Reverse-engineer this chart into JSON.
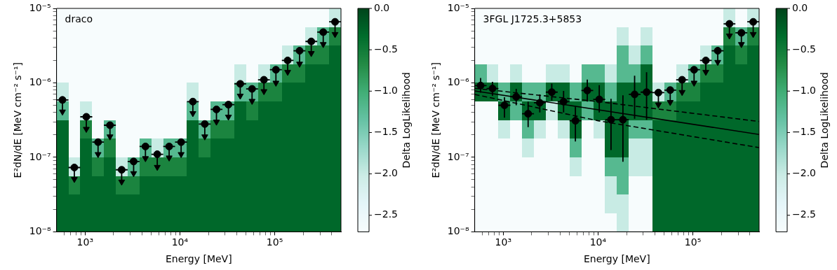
{
  "chart_data": [
    {
      "type": "heatmap",
      "xlabel": "Energy [MeV]",
      "ylabel": "E²dN/dE [MeV cm⁻² s⁻¹]",
      "clabel": "Delta LogLikelihood",
      "annotations": [
        "draco"
      ],
      "log": "xy",
      "xlim": [
        500,
        500000
      ],
      "ylim": [
        1e-08,
        1e-05
      ],
      "xticks": [
        {
          "value": 600,
          "label": null
        },
        {
          "value": 700,
          "label": null
        },
        {
          "value": 800,
          "label": null
        },
        {
          "value": 900,
          "label": null
        },
        {
          "value": 1000,
          "label": "10³"
        },
        {
          "value": 2000,
          "label": null
        },
        {
          "value": 3000,
          "label": null
        },
        {
          "value": 4000,
          "label": null
        },
        {
          "value": 5000,
          "label": null
        },
        {
          "value": 6000,
          "label": null
        },
        {
          "value": 7000,
          "label": null
        },
        {
          "value": 8000,
          "label": null
        },
        {
          "value": 9000,
          "label": null
        },
        {
          "value": 10000,
          "label": "10⁴"
        },
        {
          "value": 20000,
          "label": null
        },
        {
          "value": 30000,
          "label": null
        },
        {
          "value": 40000,
          "label": null
        },
        {
          "value": 50000,
          "label": null
        },
        {
          "value": 60000,
          "label": null
        },
        {
          "value": 70000,
          "label": null
        },
        {
          "value": 80000,
          "label": null
        },
        {
          "value": 90000,
          "label": null
        },
        {
          "value": 100000,
          "label": "10⁵"
        },
        {
          "value": 200000,
          "label": null
        },
        {
          "value": 300000,
          "label": null
        },
        {
          "value": 400000,
          "label": null
        }
      ],
      "yticks": [
        {
          "value": 1e-08,
          "label": "10⁻⁸"
        },
        {
          "value": 2e-08,
          "label": null
        },
        {
          "value": 3e-08,
          "label": null
        },
        {
          "value": 4e-08,
          "label": null
        },
        {
          "value": 5e-08,
          "label": null
        },
        {
          "value": 6e-08,
          "label": null
        },
        {
          "value": 7e-08,
          "label": null
        },
        {
          "value": 8e-08,
          "label": null
        },
        {
          "value": 9e-08,
          "label": null
        },
        {
          "value": 1e-07,
          "label": "10⁻⁷"
        },
        {
          "value": 2e-07,
          "label": null
        },
        {
          "value": 3e-07,
          "label": null
        },
        {
          "value": 4e-07,
          "label": null
        },
        {
          "value": 5e-07,
          "label": null
        },
        {
          "value": 6e-07,
          "label": null
        },
        {
          "value": 7e-07,
          "label": null
        },
        {
          "value": 8e-07,
          "label": null
        },
        {
          "value": 9e-07,
          "label": null
        },
        {
          "value": 1e-06,
          "label": "10⁻⁶"
        },
        {
          "value": 2e-06,
          "label": null
        },
        {
          "value": 3e-06,
          "label": null
        },
        {
          "value": 4e-06,
          "label": null
        },
        {
          "value": 5e-06,
          "label": null
        },
        {
          "value": 6e-06,
          "label": null
        },
        {
          "value": 7e-06,
          "label": null
        },
        {
          "value": 8e-06,
          "label": null
        },
        {
          "value": 9e-06,
          "label": null
        },
        {
          "value": 1e-05,
          "label": "10⁻⁵"
        }
      ],
      "clim": [
        -2.7,
        0
      ],
      "cticks": [
        {
          "value": 0,
          "label": "0.0"
        },
        {
          "value": -0.5,
          "label": "−0.5"
        },
        {
          "value": -1,
          "label": "−1.0"
        },
        {
          "value": -1.5,
          "label": "−1.5"
        },
        {
          "value": -2,
          "label": "−2.0"
        },
        {
          "value": -2.5,
          "label": "−2.5"
        }
      ],
      "cells": [
        [
          -2.7,
          -2.7,
          -2.7,
          -2.7,
          -2.7,
          -2.7,
          -2.7,
          -2.7,
          -2.7,
          -2.7,
          -2.7,
          -2.7,
          -2.7,
          -2.7,
          -2.7,
          -2.7,
          -2.7,
          -2.7,
          -2.7,
          -2.7,
          -2.7,
          -2.7,
          -2.7,
          -2
        ],
        [
          -2.7,
          -2.7,
          -2.7,
          -2.7,
          -2.7,
          -2.7,
          -2.7,
          -2.7,
          -2.7,
          -2.7,
          -2.7,
          -2.7,
          -2.7,
          -2.7,
          -2.7,
          -2.7,
          -2.7,
          -2.7,
          -2.7,
          -2.7,
          -2.7,
          -2,
          -1.2,
          -0.6
        ],
        [
          -2.7,
          -2.7,
          -2.7,
          -2.7,
          -2.7,
          -2.7,
          -2.7,
          -2.7,
          -2.7,
          -2.7,
          -2.7,
          -2.7,
          -2.7,
          -2.7,
          -2.7,
          -2.7,
          -2.7,
          -2.7,
          -2.7,
          -2,
          -1.2,
          -0.6,
          -0.6,
          -0.3
        ],
        [
          -2.7,
          -2.7,
          -2.7,
          -2.7,
          -2.7,
          -2.7,
          -2.7,
          -2.7,
          -2.7,
          -2.7,
          -2.7,
          -2.7,
          -2.7,
          -2.7,
          -2.7,
          -2,
          -2.7,
          -2,
          -1.2,
          -0.6,
          -0.6,
          -0.3,
          -0.3,
          -0.3
        ],
        [
          -2,
          -2.7,
          -2.7,
          -2.7,
          -2.7,
          -2.7,
          -2.7,
          -2.7,
          -2.7,
          -2.7,
          -2.7,
          -2,
          -2.7,
          -2.7,
          -2.7,
          -1.2,
          -1.2,
          -0.6,
          -0.6,
          -0.3,
          -0.3,
          -0.3,
          -0.3,
          -0.3
        ],
        [
          -1.2,
          -2.7,
          -2,
          -2.7,
          -2.7,
          -2.7,
          -2.7,
          -2.7,
          -2.7,
          -2.7,
          -2.7,
          -1.2,
          -2.7,
          -1.2,
          -1.2,
          -0.3,
          -0.6,
          -0.3,
          -0.3,
          -0.3,
          -0.3,
          -0.3,
          -0.3,
          -0.3
        ],
        [
          -0.3,
          -2.7,
          -0.6,
          -2.7,
          -1.2,
          -2.7,
          -2.7,
          -2.7,
          -2.7,
          -2.7,
          -2.7,
          -0.3,
          -1.2,
          -0.6,
          -0.6,
          -0.3,
          -0.3,
          -0.3,
          -0.3,
          -0.3,
          -0.3,
          -0.3,
          -0.3,
          -0.3
        ],
        [
          -0.3,
          -2.7,
          -0.3,
          -1.2,
          -0.6,
          -2.7,
          -2.7,
          -1.2,
          -2,
          -1.2,
          -1.2,
          -0.3,
          -0.6,
          -0.3,
          -0.3,
          -0.3,
          -0.3,
          -0.3,
          -0.3,
          -0.3,
          -0.3,
          -0.3,
          -0.3,
          -0.3
        ],
        [
          -0.3,
          -2,
          -0.3,
          -0.6,
          -0.3,
          -2,
          -1.2,
          -0.6,
          -0.6,
          -0.6,
          -0.6,
          -0.3,
          -0.3,
          -0.3,
          -0.3,
          -0.3,
          -0.3,
          -0.3,
          -0.3,
          -0.3,
          -0.3,
          -0.3,
          -0.3,
          -0.3
        ],
        [
          -0.3,
          -0.6,
          -0.3,
          -0.3,
          -0.3,
          -0.6,
          -0.6,
          -0.3,
          -0.3,
          -0.3,
          -0.3,
          -0.3,
          -0.3,
          -0.3,
          -0.3,
          -0.3,
          -0.3,
          -0.3,
          -0.3,
          -0.3,
          -0.3,
          -0.3,
          -0.3,
          -0.3
        ],
        [
          -0.3,
          -0.3,
          -0.3,
          -0.3,
          -0.3,
          -0.3,
          -0.3,
          -0.3,
          -0.3,
          -0.3,
          -0.3,
          -0.3,
          -0.3,
          -0.3,
          -0.3,
          -0.3,
          -0.3,
          -0.3,
          -0.3,
          -0.3,
          -0.3,
          -0.3,
          -0.3,
          -0.3
        ],
        [
          -0.3,
          -0.3,
          -0.3,
          -0.3,
          -0.3,
          -0.3,
          -0.3,
          -0.3,
          -0.3,
          -0.3,
          -0.3,
          -0.3,
          -0.3,
          -0.3,
          -0.3,
          -0.3,
          -0.3,
          -0.3,
          -0.3,
          -0.3,
          -0.3,
          -0.3,
          -0.3,
          -0.3
        ]
      ],
      "series": [
        {
          "type": "scatter",
          "color": "#000000",
          "marker": "circle",
          "x": [
            577,
            770,
            1030,
            1370,
            1830,
            2430,
            3250,
            4330,
            5770,
            7700,
            10300,
            13700,
            18300,
            24300,
            32500,
            43300,
            57700,
            77000,
            103000,
            137000,
            183000,
            243000,
            325000,
            433000
          ],
          "values": [
            5.9e-07,
            7.3e-08,
            3.5e-07,
            1.6e-07,
            2.7e-07,
            6.8e-08,
            8.8e-08,
            1.4e-07,
            1.1e-07,
            1.4e-07,
            1.6e-07,
            5.6e-07,
            2.8e-07,
            4.4e-07,
            5.1e-07,
            9.7e-07,
            8.3e-07,
            1.1e-06,
            1.5e-06,
            2e-06,
            2.7e-06,
            3.6e-06,
            4.8e-06,
            6.6e-06
          ],
          "errors": [
            [
              4.1e-07,
              5.9e-07
            ],
            [
              5.1e-08,
              7.3e-08
            ],
            [
              2.4e-07,
              3.5e-07
            ],
            [
              1.1e-07,
              1.6e-07
            ],
            [
              1.9e-07,
              2.7e-07
            ],
            [
              4.7e-08,
              6.8e-08
            ],
            [
              6.1e-08,
              8.8e-08
            ],
            [
              9.7e-08,
              1.4e-07
            ],
            [
              7.4e-08,
              1.1e-07
            ],
            [
              9.9e-08,
              1.4e-07
            ],
            [
              1.1e-07,
              1.6e-07
            ],
            [
              3.9e-07,
              5.6e-07
            ],
            [
              1.9e-07,
              2.8e-07
            ],
            [
              3e-07,
              4.4e-07
            ],
            [
              3.5e-07,
              5.1e-07
            ],
            [
              6.7e-07,
              9.7e-07
            ],
            [
              5.7e-07,
              8.3e-07
            ],
            [
              7.7e-07,
              1.1e-06
            ],
            [
              1e-06,
              1.5e-06
            ],
            [
              1.4e-06,
              2e-06
            ],
            [
              1.8e-06,
              2.7e-06
            ],
            [
              2.5e-06,
              3.6e-06
            ],
            [
              3.3e-06,
              4.8e-06
            ],
            [
              4.5e-06,
              6.6e-06
            ]
          ],
          "xerrors": [
            [
              500,
              667
            ],
            [
              667,
              889
            ],
            [
              889,
              1190
            ],
            [
              1190,
              1580
            ],
            [
              1580,
              2110
            ],
            [
              2110,
              2810
            ],
            [
              2810,
              3750
            ],
            [
              3750,
              5000
            ],
            [
              5000,
              6670
            ],
            [
              6670,
              8890
            ],
            [
              8890,
              11900
            ],
            [
              11900,
              15800
            ],
            [
              15800,
              21100
            ],
            [
              21100,
              28100
            ],
            [
              28100,
              37500
            ],
            [
              37500,
              50000
            ],
            [
              50000,
              66700
            ],
            [
              66700,
              88900
            ],
            [
              88900,
              119000
            ],
            [
              119000,
              158000
            ],
            [
              158000,
              211000
            ],
            [
              211000,
              281000
            ],
            [
              281000,
              375000
            ],
            [
              375000,
              500000
            ]
          ]
        },
        {
          "type": "scatter",
          "color": "#000000",
          "marker": "triangle",
          "x": [
            577,
            770,
            1030,
            1370,
            1830,
            2430,
            3250,
            4330,
            5770,
            7700,
            10300,
            13700,
            18300,
            24300,
            32500,
            43300,
            57700,
            77000,
            103000,
            137000,
            183000,
            243000,
            325000,
            433000
          ],
          "values": [
            4.1e-07,
            5.1e-08,
            2.4e-07,
            1.1e-07,
            1.9e-07,
            4.7e-08,
            6.1e-08,
            9.7e-08,
            7.4e-08,
            9.9e-08,
            1.1e-07,
            3.9e-07,
            1.9e-07,
            3e-07,
            3.5e-07,
            6.7e-07,
            5.7e-07,
            7.7e-07,
            1e-06,
            1.4e-06,
            1.8e-06,
            2.5e-06,
            3.3e-06,
            4.5e-06
          ]
        }
      ]
    },
    {
      "type": "heatmap",
      "xlabel": "Energy [MeV]",
      "ylabel": "E²dN/dE [MeV cm⁻² s⁻¹]",
      "clabel": "Delta LogLikelihood",
      "annotations": [
        "3FGL J1725.3+5853"
      ],
      "log": "xy",
      "xlim": [
        500,
        500000
      ],
      "ylim": [
        1e-08,
        1e-05
      ],
      "xticks": [
        {
          "value": 600,
          "label": null
        },
        {
          "value": 700,
          "label": null
        },
        {
          "value": 800,
          "label": null
        },
        {
          "value": 900,
          "label": null
        },
        {
          "value": 1000,
          "label": "10³"
        },
        {
          "value": 2000,
          "label": null
        },
        {
          "value": 3000,
          "label": null
        },
        {
          "value": 4000,
          "label": null
        },
        {
          "value": 5000,
          "label": null
        },
        {
          "value": 6000,
          "label": null
        },
        {
          "value": 7000,
          "label": null
        },
        {
          "value": 8000,
          "label": null
        },
        {
          "value": 9000,
          "label": null
        },
        {
          "value": 10000,
          "label": "10⁴"
        },
        {
          "value": 20000,
          "label": null
        },
        {
          "value": 30000,
          "label": null
        },
        {
          "value": 40000,
          "label": null
        },
        {
          "value": 50000,
          "label": null
        },
        {
          "value": 60000,
          "label": null
        },
        {
          "value": 70000,
          "label": null
        },
        {
          "value": 80000,
          "label": null
        },
        {
          "value": 90000,
          "label": null
        },
        {
          "value": 100000,
          "label": "10⁵"
        },
        {
          "value": 200000,
          "label": null
        },
        {
          "value": 300000,
          "label": null
        },
        {
          "value": 400000,
          "label": null
        }
      ],
      "yticks": [
        {
          "value": 1e-08,
          "label": "10⁻⁸"
        },
        {
          "value": 2e-08,
          "label": null
        },
        {
          "value": 3e-08,
          "label": null
        },
        {
          "value": 4e-08,
          "label": null
        },
        {
          "value": 5e-08,
          "label": null
        },
        {
          "value": 6e-08,
          "label": null
        },
        {
          "value": 7e-08,
          "label": null
        },
        {
          "value": 8e-08,
          "label": null
        },
        {
          "value": 9e-08,
          "label": null
        },
        {
          "value": 1e-07,
          "label": "10⁻⁷"
        },
        {
          "value": 2e-07,
          "label": null
        },
        {
          "value": 3e-07,
          "label": null
        },
        {
          "value": 4e-07,
          "label": null
        },
        {
          "value": 5e-07,
          "label": null
        },
        {
          "value": 6e-07,
          "label": null
        },
        {
          "value": 7e-07,
          "label": null
        },
        {
          "value": 8e-07,
          "label": null
        },
        {
          "value": 9e-07,
          "label": null
        },
        {
          "value": 1e-06,
          "label": "10⁻⁶"
        },
        {
          "value": 2e-06,
          "label": null
        },
        {
          "value": 3e-06,
          "label": null
        },
        {
          "value": 4e-06,
          "label": null
        },
        {
          "value": 5e-06,
          "label": null
        },
        {
          "value": 6e-06,
          "label": null
        },
        {
          "value": 7e-06,
          "label": null
        },
        {
          "value": 8e-06,
          "label": null
        },
        {
          "value": 9e-06,
          "label": null
        },
        {
          "value": 1e-05,
          "label": "10⁻⁵"
        }
      ],
      "clim": [
        -2.7,
        0
      ],
      "cticks": [
        {
          "value": 0,
          "label": "0.0"
        },
        {
          "value": -0.5,
          "label": "−0.5"
        },
        {
          "value": -1,
          "label": "−1.0"
        },
        {
          "value": -1.5,
          "label": "−1.5"
        },
        {
          "value": -2,
          "label": "−2.0"
        },
        {
          "value": -2.5,
          "label": "−2.5"
        }
      ],
      "cells": [
        [
          -2.7,
          -2.7,
          -2.7,
          -2.7,
          -2.7,
          -2.7,
          -2.7,
          -2.7,
          -2.7,
          -2.7,
          -2.7,
          -2.7,
          -2.7,
          -2.7,
          -2.7,
          -2.7,
          -2.7,
          -2.7,
          -2.7,
          -2.7,
          -2.7,
          -2,
          -2.7,
          -2
        ],
        [
          -2.7,
          -2.7,
          -2.7,
          -2.7,
          -2.7,
          -2.7,
          -2.7,
          -2.7,
          -2.7,
          -2.7,
          -2.7,
          -2.7,
          -2,
          -2.7,
          -2,
          -2.7,
          -2.7,
          -2.7,
          -2.7,
          -2.7,
          -2.7,
          -0.6,
          -1.2,
          -0.6
        ],
        [
          -2.7,
          -2.7,
          -2.7,
          -2.7,
          -2.7,
          -2.7,
          -2.7,
          -2.7,
          -2.7,
          -2.7,
          -2.7,
          -2.7,
          -1.2,
          -2,
          -1.2,
          -2.7,
          -2.7,
          -2.7,
          -2.7,
          -2,
          -1.2,
          -0.3,
          -0.6,
          -0.3
        ],
        [
          -1.2,
          -2,
          -2.7,
          -2,
          -2.7,
          -2.7,
          -2,
          -2,
          -2.7,
          -1.2,
          -1.2,
          -2,
          -1.2,
          -1.2,
          -0.3,
          -2.7,
          -2.7,
          -2,
          -1.2,
          -0.6,
          -0.6,
          -0.3,
          -0.3,
          -0.3
        ],
        [
          -0.3,
          -0.3,
          -1.2,
          -0.3,
          -1.2,
          -1.2,
          -0.3,
          -0.3,
          -1.2,
          -0.3,
          -0.3,
          -1.2,
          -0.3,
          -0.3,
          -0.3,
          -2,
          -1.2,
          -0.6,
          -0.6,
          -0.3,
          -0.3,
          -0.3,
          -0.3,
          -0.3
        ],
        [
          -2.7,
          -2.7,
          -0.3,
          -1.2,
          -0.3,
          -0.3,
          -2,
          -0.3,
          -0.3,
          -1.2,
          -0.3,
          -0.3,
          -0.3,
          -0.3,
          -0.3,
          -0.6,
          -0.6,
          -0.3,
          -0.3,
          -0.3,
          -0.3,
          -0.3,
          -0.3,
          -0.3
        ],
        [
          -2.7,
          -2.7,
          -2,
          -2.7,
          -1.2,
          -2,
          -2.7,
          -2,
          -0.3,
          -2.7,
          -2,
          -0.3,
          -0.3,
          -1.2,
          -1.2,
          -0.3,
          -0.3,
          -0.3,
          -0.3,
          -0.3,
          -0.3,
          -0.3,
          -0.3,
          -0.3
        ],
        [
          -2.7,
          -2.7,
          -2.7,
          -2.7,
          -2,
          -2.7,
          -2.7,
          -2.7,
          -1.2,
          -2.7,
          -2.7,
          -0.3,
          -0.3,
          -2,
          -2,
          -0.3,
          -0.3,
          -0.3,
          -0.3,
          -0.3,
          -0.3,
          -0.3,
          -0.3,
          -0.3
        ],
        [
          -2.7,
          -2.7,
          -2.7,
          -2.7,
          -2.7,
          -2.7,
          -2.7,
          -2.7,
          -2,
          -2.7,
          -2.7,
          -1.2,
          -1.2,
          -2,
          -2,
          -0.3,
          -0.3,
          -0.3,
          -0.3,
          -0.3,
          -0.3,
          -0.3,
          -0.3,
          -0.3
        ],
        [
          -2.7,
          -2.7,
          -2.7,
          -2.7,
          -2.7,
          -2.7,
          -2.7,
          -2.7,
          -2.7,
          -2.7,
          -2.7,
          -2,
          -1.2,
          -2.7,
          -2.7,
          -0.3,
          -0.3,
          -0.3,
          -0.3,
          -0.3,
          -0.3,
          -0.3,
          -0.3,
          -0.3
        ],
        [
          -2.7,
          -2.7,
          -2.7,
          -2.7,
          -2.7,
          -2.7,
          -2.7,
          -2.7,
          -2.7,
          -2.7,
          -2.7,
          -2,
          -2,
          -2.7,
          -2.7,
          -0.3,
          -0.3,
          -0.3,
          -0.3,
          -0.3,
          -0.3,
          -0.3,
          -0.3,
          -0.3
        ],
        [
          -2.7,
          -2.7,
          -2.7,
          -2.7,
          -2.7,
          -2.7,
          -2.7,
          -2.7,
          -2.7,
          -2.7,
          -2.7,
          -2.7,
          -2,
          -2.7,
          -2.7,
          -0.3,
          -0.3,
          -0.3,
          -0.3,
          -0.3,
          -0.3,
          -0.3,
          -0.3,
          -0.3
        ]
      ],
      "series": [
        {
          "type": "line",
          "color": "#000000",
          "line_style": "solid",
          "marker": "none",
          "x": [
            500,
            500000
          ],
          "values": [
            7.8e-07,
            2.03e-07
          ]
        },
        {
          "type": "line",
          "color": "#000000",
          "line_style": "dashed",
          "marker": "none",
          "x": [
            500,
            10000,
            500000
          ],
          "values": [
            8.45e-07,
            5.6e-07,
            3.03e-07
          ]
        },
        {
          "type": "line",
          "color": "#000000",
          "line_style": "dashed",
          "marker": "none",
          "x": [
            500,
            10000,
            500000
          ],
          "values": [
            7e-07,
            3.1e-07,
            1.35e-07
          ]
        },
        {
          "type": "scatter",
          "color": "#000000",
          "marker": "circle",
          "x": [
            577,
            770,
            1030,
            1370,
            1830,
            2430,
            3250,
            4330,
            5770,
            7700,
            10300,
            13700,
            18300,
            24300,
            32500
          ],
          "values": [
            9.2e-07,
            8.4e-07,
            5e-07,
            6.5e-07,
            3.85e-07,
            5.4e-07,
            7.5e-07,
            5.6e-07,
            3.1e-07,
            7.9e-07,
            6e-07,
            3.2e-07,
            3.2e-07,
            7e-07,
            7.5e-07
          ],
          "errors": [
            [
              7.4e-07,
              1.16e-06
            ],
            [
              6.7e-07,
              1.03e-06
            ],
            [
              3.4e-07,
              6.4e-07
            ],
            [
              5e-07,
              8.3e-07
            ],
            [
              2.55e-07,
              5.6e-07
            ],
            [
              4e-07,
              7e-07
            ],
            [
              5.8e-07,
              9.8e-07
            ],
            [
              4e-07,
              7.8e-07
            ],
            [
              1.63e-07,
              4.8e-07
            ],
            [
              5.6e-07,
              1.11e-06
            ],
            [
              4e-07,
              9.3e-07
            ],
            [
              1.25e-07,
              6.1e-07
            ],
            [
              8.7e-08,
              6.8e-07
            ],
            [
              3.3e-07,
              1.25e-06
            ],
            [
              3.2e-07,
              1.39e-06
            ]
          ],
          "xerrors": [
            [
              500,
              667
            ],
            [
              667,
              889
            ],
            [
              889,
              1190
            ],
            [
              1190,
              1580
            ],
            [
              1580,
              2110
            ],
            [
              2110,
              2810
            ],
            [
              2810,
              3750
            ],
            [
              3750,
              5000
            ],
            [
              5000,
              6670
            ],
            [
              6670,
              8890
            ],
            [
              8890,
              11900
            ],
            [
              11900,
              15800
            ],
            [
              15800,
              21100
            ],
            [
              21100,
              28100
            ],
            [
              28100,
              37500
            ]
          ]
        },
        {
          "type": "scatter",
          "color": "#000000",
          "marker": "circle",
          "x": [
            43300,
            57700,
            77000,
            103000,
            137000,
            183000,
            243000,
            325000,
            433000
          ],
          "values": [
            7.4e-07,
            8e-07,
            1.1e-06,
            1.5e-06,
            2e-06,
            2.7e-06,
            6.2e-06,
            4.7e-06,
            6.6e-06
          ],
          "errors": [
            [
              5.1e-07,
              7.4e-07
            ],
            [
              5.5e-07,
              8e-07
            ],
            [
              7.5e-07,
              1.1e-06
            ],
            [
              1e-06,
              1.5e-06
            ],
            [
              1.4e-06,
              2e-06
            ],
            [
              1.9e-06,
              2.7e-06
            ],
            [
              4.3e-06,
              6.2e-06
            ],
            [
              3.3e-06,
              4.7e-06
            ],
            [
              4.5e-06,
              6.6e-06
            ]
          ],
          "xerrors": [
            [
              37500,
              50000
            ],
            [
              50000,
              66700
            ],
            [
              66700,
              88900
            ],
            [
              88900,
              119000
            ],
            [
              119000,
              158000
            ],
            [
              158000,
              211000
            ],
            [
              211000,
              281000
            ],
            [
              281000,
              375000
            ],
            [
              375000,
              500000
            ]
          ]
        },
        {
          "type": "scatter",
          "color": "#000000",
          "marker": "triangle",
          "x": [
            43300,
            57700,
            77000,
            103000,
            137000,
            183000,
            243000,
            325000,
            433000
          ],
          "values": [
            5.1e-07,
            5.5e-07,
            7.5e-07,
            1e-06,
            1.4e-06,
            1.9e-06,
            4.3e-06,
            3.3e-06,
            4.5e-06
          ]
        }
      ]
    }
  ]
}
